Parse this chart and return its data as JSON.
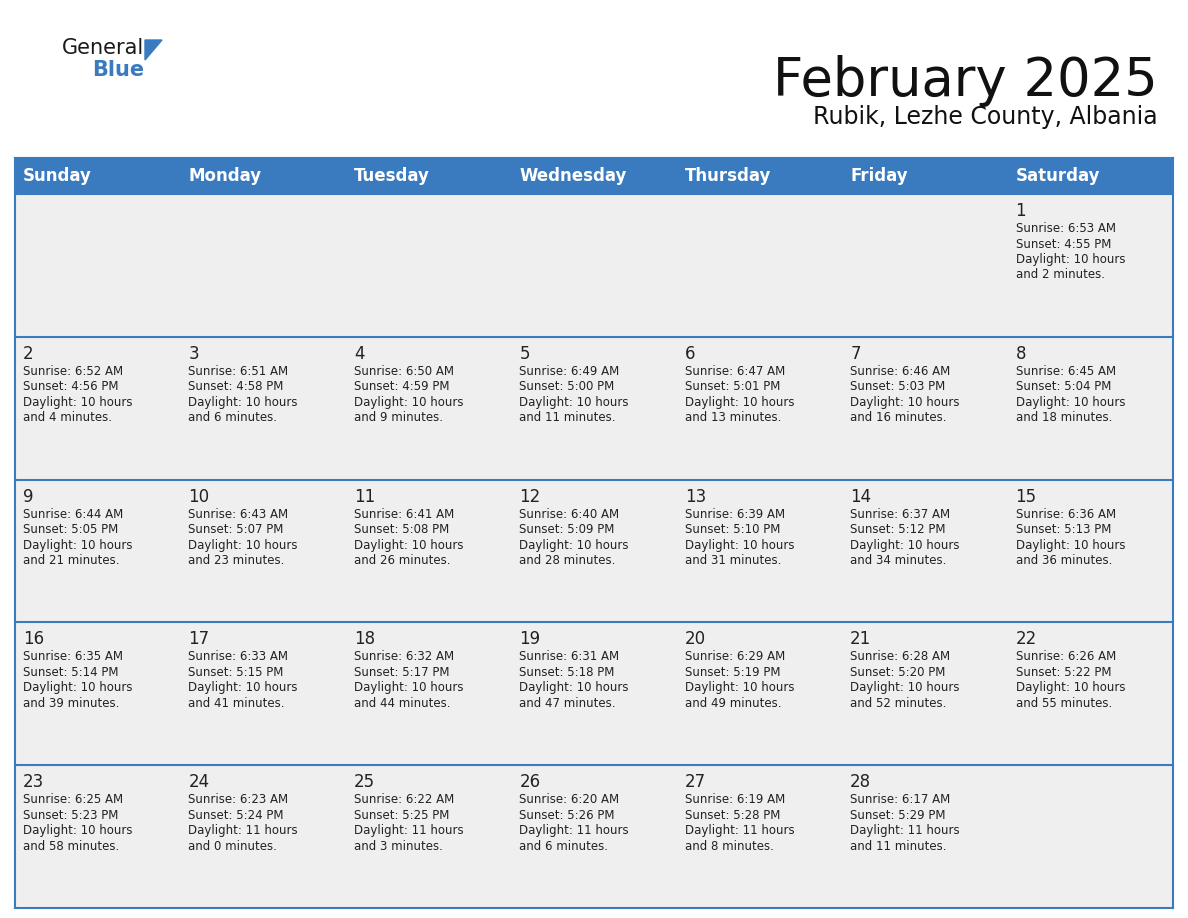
{
  "title": "February 2025",
  "subtitle": "Rubik, Lezhe County, Albania",
  "header_bg_color": "#3a7abf",
  "header_text_color": "#FFFFFF",
  "cell_bg_color": "#EFEFEF",
  "cell_bg_white": "#FFFFFF",
  "grid_line_color": "#3a7abf",
  "text_color": "#222222",
  "day_names": [
    "Sunday",
    "Monday",
    "Tuesday",
    "Wednesday",
    "Thursday",
    "Friday",
    "Saturday"
  ],
  "title_fontsize": 38,
  "subtitle_fontsize": 17,
  "day_header_fontsize": 12,
  "day_num_fontsize": 12,
  "info_fontsize": 8.5,
  "logo_color_general": "#1a1a1a",
  "logo_color_blue": "#3a7abf",
  "calendar_data": [
    [
      {
        "day": 0,
        "info": ""
      },
      {
        "day": 0,
        "info": ""
      },
      {
        "day": 0,
        "info": ""
      },
      {
        "day": 0,
        "info": ""
      },
      {
        "day": 0,
        "info": ""
      },
      {
        "day": 0,
        "info": ""
      },
      {
        "day": 1,
        "info": "Sunrise: 6:53 AM\nSunset: 4:55 PM\nDaylight: 10 hours\nand 2 minutes."
      }
    ],
    [
      {
        "day": 2,
        "info": "Sunrise: 6:52 AM\nSunset: 4:56 PM\nDaylight: 10 hours\nand 4 minutes."
      },
      {
        "day": 3,
        "info": "Sunrise: 6:51 AM\nSunset: 4:58 PM\nDaylight: 10 hours\nand 6 minutes."
      },
      {
        "day": 4,
        "info": "Sunrise: 6:50 AM\nSunset: 4:59 PM\nDaylight: 10 hours\nand 9 minutes."
      },
      {
        "day": 5,
        "info": "Sunrise: 6:49 AM\nSunset: 5:00 PM\nDaylight: 10 hours\nand 11 minutes."
      },
      {
        "day": 6,
        "info": "Sunrise: 6:47 AM\nSunset: 5:01 PM\nDaylight: 10 hours\nand 13 minutes."
      },
      {
        "day": 7,
        "info": "Sunrise: 6:46 AM\nSunset: 5:03 PM\nDaylight: 10 hours\nand 16 minutes."
      },
      {
        "day": 8,
        "info": "Sunrise: 6:45 AM\nSunset: 5:04 PM\nDaylight: 10 hours\nand 18 minutes."
      }
    ],
    [
      {
        "day": 9,
        "info": "Sunrise: 6:44 AM\nSunset: 5:05 PM\nDaylight: 10 hours\nand 21 minutes."
      },
      {
        "day": 10,
        "info": "Sunrise: 6:43 AM\nSunset: 5:07 PM\nDaylight: 10 hours\nand 23 minutes."
      },
      {
        "day": 11,
        "info": "Sunrise: 6:41 AM\nSunset: 5:08 PM\nDaylight: 10 hours\nand 26 minutes."
      },
      {
        "day": 12,
        "info": "Sunrise: 6:40 AM\nSunset: 5:09 PM\nDaylight: 10 hours\nand 28 minutes."
      },
      {
        "day": 13,
        "info": "Sunrise: 6:39 AM\nSunset: 5:10 PM\nDaylight: 10 hours\nand 31 minutes."
      },
      {
        "day": 14,
        "info": "Sunrise: 6:37 AM\nSunset: 5:12 PM\nDaylight: 10 hours\nand 34 minutes."
      },
      {
        "day": 15,
        "info": "Sunrise: 6:36 AM\nSunset: 5:13 PM\nDaylight: 10 hours\nand 36 minutes."
      }
    ],
    [
      {
        "day": 16,
        "info": "Sunrise: 6:35 AM\nSunset: 5:14 PM\nDaylight: 10 hours\nand 39 minutes."
      },
      {
        "day": 17,
        "info": "Sunrise: 6:33 AM\nSunset: 5:15 PM\nDaylight: 10 hours\nand 41 minutes."
      },
      {
        "day": 18,
        "info": "Sunrise: 6:32 AM\nSunset: 5:17 PM\nDaylight: 10 hours\nand 44 minutes."
      },
      {
        "day": 19,
        "info": "Sunrise: 6:31 AM\nSunset: 5:18 PM\nDaylight: 10 hours\nand 47 minutes."
      },
      {
        "day": 20,
        "info": "Sunrise: 6:29 AM\nSunset: 5:19 PM\nDaylight: 10 hours\nand 49 minutes."
      },
      {
        "day": 21,
        "info": "Sunrise: 6:28 AM\nSunset: 5:20 PM\nDaylight: 10 hours\nand 52 minutes."
      },
      {
        "day": 22,
        "info": "Sunrise: 6:26 AM\nSunset: 5:22 PM\nDaylight: 10 hours\nand 55 minutes."
      }
    ],
    [
      {
        "day": 23,
        "info": "Sunrise: 6:25 AM\nSunset: 5:23 PM\nDaylight: 10 hours\nand 58 minutes."
      },
      {
        "day": 24,
        "info": "Sunrise: 6:23 AM\nSunset: 5:24 PM\nDaylight: 11 hours\nand 0 minutes."
      },
      {
        "day": 25,
        "info": "Sunrise: 6:22 AM\nSunset: 5:25 PM\nDaylight: 11 hours\nand 3 minutes."
      },
      {
        "day": 26,
        "info": "Sunrise: 6:20 AM\nSunset: 5:26 PM\nDaylight: 11 hours\nand 6 minutes."
      },
      {
        "day": 27,
        "info": "Sunrise: 6:19 AM\nSunset: 5:28 PM\nDaylight: 11 hours\nand 8 minutes."
      },
      {
        "day": 28,
        "info": "Sunrise: 6:17 AM\nSunset: 5:29 PM\nDaylight: 11 hours\nand 11 minutes."
      },
      {
        "day": 0,
        "info": ""
      }
    ]
  ]
}
